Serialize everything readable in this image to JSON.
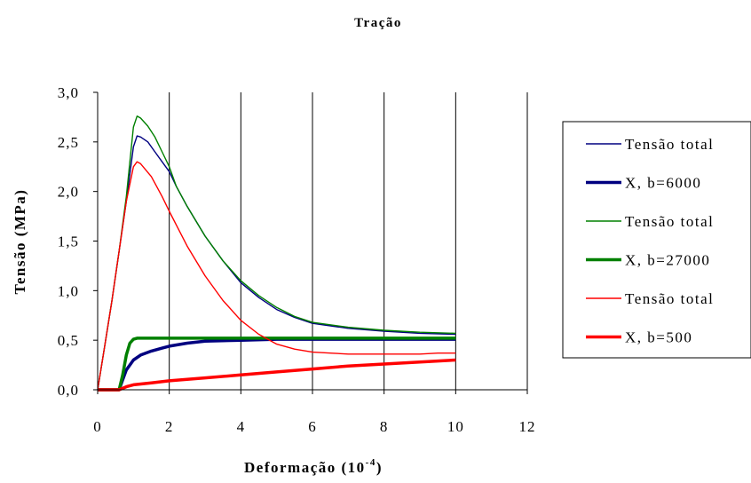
{
  "chart_data": {
    "type": "line",
    "title": "Tração",
    "xlabel": "Deformação (10",
    "xlabel_exponent": "-4",
    "xlabel_suffix": ")",
    "ylabel": "Tensão (MPa)",
    "xlim": [
      0,
      12
    ],
    "ylim": [
      0,
      3
    ],
    "xticks": [
      0,
      2,
      4,
      6,
      8,
      10,
      12
    ],
    "xtick_labels": [
      "0",
      "2",
      "4",
      "6",
      "8",
      "10",
      "12"
    ],
    "yticks": [
      0,
      0.5,
      1.0,
      1.5,
      2.0,
      2.5,
      3.0
    ],
    "ytick_labels": [
      "0,0",
      "0,5",
      "1,0",
      "1,5",
      "2,0",
      "2,5",
      "3,0"
    ],
    "grid": "vertical",
    "legend_position": "right",
    "series": [
      {
        "name": "Tensão total",
        "color": "#000080",
        "style": "thin",
        "x": [
          0,
          0.2,
          0.4,
          0.6,
          0.8,
          1.0,
          1.1,
          1.2,
          1.4,
          1.6,
          1.8,
          2.0,
          2.2,
          2.5,
          3.0,
          3.5,
          4.0,
          4.5,
          5.0,
          5.5,
          6.0,
          7.0,
          8.0,
          9.0,
          10.0
        ],
        "y": [
          0,
          0.45,
          0.9,
          1.4,
          1.9,
          2.45,
          2.56,
          2.55,
          2.5,
          2.4,
          2.3,
          2.2,
          2.05,
          1.85,
          1.55,
          1.3,
          1.08,
          0.93,
          0.81,
          0.73,
          0.67,
          0.62,
          0.59,
          0.57,
          0.56
        ]
      },
      {
        "name": "X, b=6000",
        "color": "#000080",
        "style": "thick",
        "x": [
          0,
          0.6,
          0.7,
          0.8,
          0.9,
          1.0,
          1.2,
          1.5,
          1.8,
          2.0,
          2.5,
          3.0,
          4.0,
          5.0,
          6.0,
          7.0,
          8.0,
          9.0,
          10.0
        ],
        "y": [
          0,
          0,
          0.1,
          0.2,
          0.25,
          0.3,
          0.35,
          0.39,
          0.42,
          0.44,
          0.47,
          0.49,
          0.5,
          0.51,
          0.51,
          0.51,
          0.51,
          0.51,
          0.51
        ]
      },
      {
        "name": "Tensão total",
        "color": "#008000",
        "style": "thin",
        "x": [
          0,
          0.2,
          0.4,
          0.6,
          0.8,
          1.0,
          1.1,
          1.2,
          1.4,
          1.6,
          1.8,
          2.0,
          2.2,
          2.5,
          3.0,
          3.5,
          4.0,
          4.5,
          5.0,
          5.5,
          6.0,
          7.0,
          8.0,
          9.0,
          10.0
        ],
        "y": [
          0,
          0.45,
          0.9,
          1.4,
          1.95,
          2.65,
          2.76,
          2.74,
          2.66,
          2.55,
          2.4,
          2.25,
          2.05,
          1.85,
          1.55,
          1.3,
          1.1,
          0.95,
          0.83,
          0.74,
          0.68,
          0.63,
          0.6,
          0.58,
          0.57
        ]
      },
      {
        "name": "X, b=27000",
        "color": "#008000",
        "style": "thick",
        "x": [
          0,
          0.6,
          0.7,
          0.8,
          0.9,
          1.0,
          1.1,
          2.0,
          4.0,
          6.0,
          8.0,
          10.0
        ],
        "y": [
          0,
          0,
          0.15,
          0.35,
          0.47,
          0.51,
          0.52,
          0.52,
          0.52,
          0.52,
          0.52,
          0.52
        ]
      },
      {
        "name": "Tensão total",
        "color": "#ff0000",
        "style": "thin",
        "x": [
          0,
          0.2,
          0.4,
          0.6,
          0.8,
          1.0,
          1.1,
          1.2,
          1.5,
          1.8,
          2.0,
          2.5,
          3.0,
          3.5,
          4.0,
          4.5,
          5.0,
          5.5,
          6.0,
          6.5,
          7.0,
          8.0,
          9.0,
          9.5,
          10.0
        ],
        "y": [
          0,
          0.45,
          0.9,
          1.4,
          1.9,
          2.25,
          2.3,
          2.28,
          2.15,
          1.95,
          1.8,
          1.45,
          1.15,
          0.9,
          0.7,
          0.56,
          0.46,
          0.41,
          0.38,
          0.37,
          0.36,
          0.36,
          0.36,
          0.37,
          0.37
        ]
      },
      {
        "name": "X, b=500",
        "color": "#ff0000",
        "style": "thick",
        "x": [
          0,
          0.6,
          0.8,
          1.0,
          1.5,
          2.0,
          3.0,
          4.0,
          5.0,
          6.0,
          7.0,
          8.0,
          9.0,
          10.0
        ],
        "y": [
          0,
          0,
          0.03,
          0.05,
          0.07,
          0.09,
          0.12,
          0.15,
          0.18,
          0.21,
          0.24,
          0.26,
          0.28,
          0.3
        ]
      }
    ]
  }
}
